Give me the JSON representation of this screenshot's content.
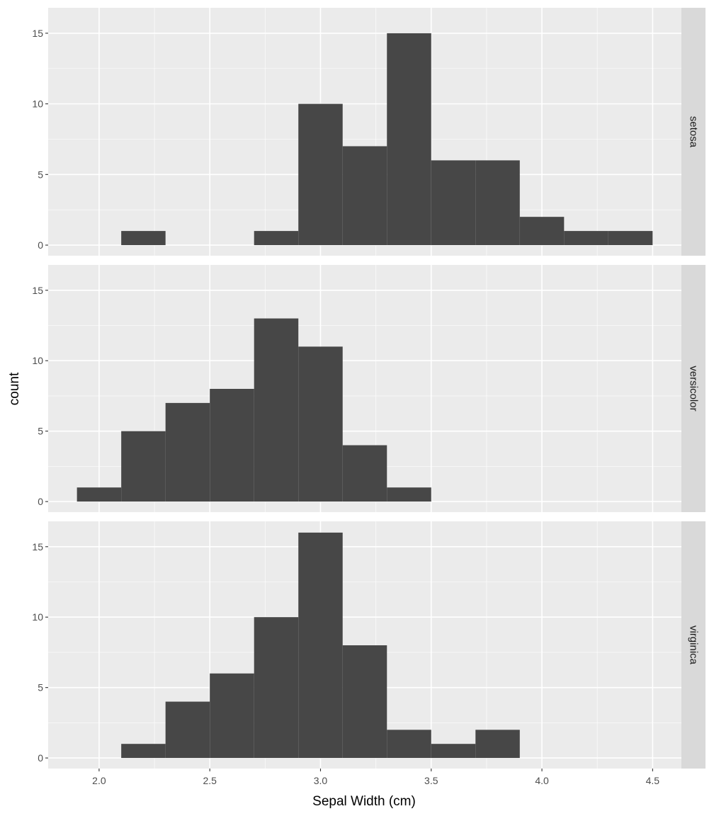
{
  "chart_data": {
    "type": "bar",
    "subtype": "histogram",
    "facet_layout": "rows",
    "xlabel": "Sepal Width (cm)",
    "ylabel": "count",
    "xlim": [
      1.77,
      4.63
    ],
    "ylim": [
      -0.75,
      16.8
    ],
    "x_ticks": [
      2.0,
      2.5,
      3.0,
      3.5,
      4.0,
      4.5
    ],
    "x_tick_labels": [
      "2.0",
      "2.5",
      "3.0",
      "3.5",
      "4.0",
      "4.5"
    ],
    "y_ticks": [
      0,
      5,
      10,
      15
    ],
    "y_tick_labels": [
      "0",
      "5",
      "10",
      "15"
    ],
    "bin_width": 0.2,
    "grid": true,
    "facets": [
      {
        "label": "setosa",
        "bins": [
          {
            "x0": 2.1,
            "x1": 2.3,
            "count": 1
          },
          {
            "x0": 2.7,
            "x1": 2.9,
            "count": 1
          },
          {
            "x0": 2.9,
            "x1": 3.1,
            "count": 10
          },
          {
            "x0": 3.1,
            "x1": 3.3,
            "count": 7
          },
          {
            "x0": 3.3,
            "x1": 3.5,
            "count": 15
          },
          {
            "x0": 3.5,
            "x1": 3.7,
            "count": 6
          },
          {
            "x0": 3.7,
            "x1": 3.9,
            "count": 6
          },
          {
            "x0": 3.9,
            "x1": 4.1,
            "count": 2
          },
          {
            "x0": 4.1,
            "x1": 4.3,
            "count": 1
          },
          {
            "x0": 4.3,
            "x1": 4.5,
            "count": 1
          }
        ]
      },
      {
        "label": "versicolor",
        "bins": [
          {
            "x0": 1.9,
            "x1": 2.1,
            "count": 1
          },
          {
            "x0": 2.1,
            "x1": 2.3,
            "count": 5
          },
          {
            "x0": 2.3,
            "x1": 2.5,
            "count": 7
          },
          {
            "x0": 2.5,
            "x1": 2.7,
            "count": 8
          },
          {
            "x0": 2.7,
            "x1": 2.9,
            "count": 13
          },
          {
            "x0": 2.9,
            "x1": 3.1,
            "count": 11
          },
          {
            "x0": 3.1,
            "x1": 3.3,
            "count": 4
          },
          {
            "x0": 3.3,
            "x1": 3.5,
            "count": 1
          }
        ]
      },
      {
        "label": "virginica",
        "bins": [
          {
            "x0": 2.1,
            "x1": 2.3,
            "count": 1
          },
          {
            "x0": 2.3,
            "x1": 2.5,
            "count": 4
          },
          {
            "x0": 2.5,
            "x1": 2.7,
            "count": 6
          },
          {
            "x0": 2.7,
            "x1": 2.9,
            "count": 10
          },
          {
            "x0": 2.9,
            "x1": 3.1,
            "count": 16
          },
          {
            "x0": 3.1,
            "x1": 3.3,
            "count": 8
          },
          {
            "x0": 3.3,
            "x1": 3.5,
            "count": 2
          },
          {
            "x0": 3.5,
            "x1": 3.7,
            "count": 1
          },
          {
            "x0": 3.7,
            "x1": 3.9,
            "count": 2
          }
        ]
      }
    ],
    "colors": {
      "bar": "#474747",
      "panel_background": "#ebebeb",
      "strip_background": "#d9d9d9",
      "grid": "#ffffff"
    }
  }
}
